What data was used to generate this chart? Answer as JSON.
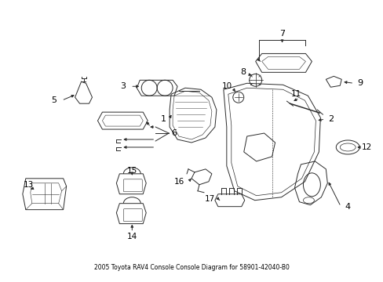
{
  "title": "2005 Toyota RAV4 Console Console Diagram for 58901-42040-B0",
  "background_color": "#ffffff",
  "line_color": "#2a2a2a",
  "text_color": "#000000",
  "fig_width": 4.89,
  "fig_height": 3.6,
  "dpi": 100
}
